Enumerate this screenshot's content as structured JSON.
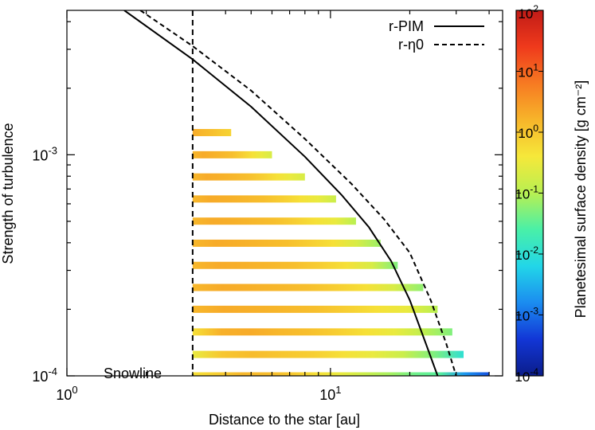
{
  "chart_data": {
    "type": "heatmap",
    "xlabel": "Distance to the star [au]",
    "ylabel": "Strength of turbulence",
    "xscale": "log",
    "yscale": "log",
    "xlim": [
      1,
      45
    ],
    "ylim": [
      0.0001,
      0.0045
    ],
    "x_ticks": [
      {
        "value": 1,
        "base": "10",
        "exp": "0"
      },
      {
        "value": 10,
        "base": "10",
        "exp": "1"
      }
    ],
    "y_ticks": [
      {
        "value": 0.0001,
        "base": "10",
        "exp": "-4"
      },
      {
        "value": 0.001,
        "base": "10",
        "exp": "-3"
      }
    ],
    "annotation": "Snowline",
    "snowline_x": 3.0,
    "series": [
      {
        "name": "r-PIM",
        "style": "solid",
        "points": [
          [
            1.65,
            0.0045
          ],
          [
            3.0,
            0.0027
          ],
          [
            5.0,
            0.00165
          ],
          [
            8.0,
            0.00098
          ],
          [
            11.0,
            0.00066
          ],
          [
            14.0,
            0.00047
          ],
          [
            17.0,
            0.00033
          ],
          [
            20.0,
            0.00022
          ],
          [
            23.0,
            0.00014
          ],
          [
            25.5,
            0.0001
          ]
        ]
      },
      {
        "name": "r-η0",
        "style": "dashed",
        "points": [
          [
            1.9,
            0.0045
          ],
          [
            3.0,
            0.0031
          ],
          [
            5.0,
            0.00195
          ],
          [
            8.0,
            0.00118
          ],
          [
            12.0,
            0.00074
          ],
          [
            16.0,
            0.00051
          ],
          [
            20.0,
            0.00036
          ],
          [
            24.0,
            0.00022
          ],
          [
            27.5,
            0.00014
          ],
          [
            30.0,
            0.0001
          ]
        ]
      }
    ],
    "strips": [
      {
        "alpha": 0.0001,
        "x_start": 3.0,
        "x_end": 40.0,
        "values": [
          0.5,
          0.8,
          1.5,
          1.3,
          1.0,
          0.5,
          0.3,
          0.15,
          0.08,
          0.04,
          0.03,
          0.002,
          0.0006
        ]
      },
      {
        "alpha": 0.000125,
        "x_start": 3.0,
        "x_end": 32.0,
        "values": [
          0.3,
          1.0,
          1.3,
          1.0,
          0.8,
          0.5,
          0.3,
          0.15,
          0.05,
          0.01
        ]
      },
      {
        "alpha": 0.000158,
        "x_start": 3.0,
        "x_end": 29.0,
        "values": [
          0.5,
          1.8,
          2.0,
          1.5,
          1.2,
          0.8,
          0.5,
          0.3,
          0.12,
          0.05
        ]
      },
      {
        "alpha": 0.0002,
        "x_start": 3.0,
        "x_end": 25.5,
        "values": [
          1.5,
          2.0,
          1.8,
          1.5,
          1.2,
          0.8,
          0.5,
          0.3,
          0.1
        ]
      },
      {
        "alpha": 0.000251,
        "x_start": 3.0,
        "x_end": 22.5,
        "values": [
          1.5,
          2.0,
          1.8,
          1.5,
          1.2,
          0.8,
          0.5,
          0.2,
          0.06
        ]
      },
      {
        "alpha": 0.000316,
        "x_start": 3.0,
        "x_end": 18.0,
        "values": [
          1.5,
          2.0,
          1.8,
          1.5,
          1.2,
          0.8,
          0.5,
          0.2,
          0.05
        ]
      },
      {
        "alpha": 0.000398,
        "x_start": 3.0,
        "x_end": 15.5,
        "values": [
          1.5,
          2.0,
          1.8,
          1.5,
          1.2,
          0.8,
          0.5,
          0.2,
          0.07
        ]
      },
      {
        "alpha": 0.000501,
        "x_start": 3.0,
        "x_end": 12.5,
        "values": [
          1.5,
          2.0,
          1.8,
          1.5,
          1.2,
          0.8,
          0.5,
          0.3,
          0.1
        ]
      },
      {
        "alpha": 0.000631,
        "x_start": 3.0,
        "x_end": 10.5,
        "values": [
          1.5,
          2.0,
          1.8,
          1.5,
          1.2,
          0.8,
          0.5,
          0.3,
          0.15
        ]
      },
      {
        "alpha": 0.000794,
        "x_start": 3.0,
        "x_end": 8.0,
        "values": [
          1.5,
          2.0,
          1.8,
          1.5,
          1.2,
          0.8,
          0.5,
          0.3,
          0.2
        ]
      },
      {
        "alpha": 0.001,
        "x_start": 3.0,
        "x_end": 6.0,
        "values": [
          1.5,
          2.0,
          1.8,
          1.5,
          1.2,
          0.8,
          0.5,
          0.3,
          0.2
        ]
      },
      {
        "alpha": 0.00126,
        "x_start": 3.0,
        "x_end": 4.2,
        "values": [
          2.0,
          1.5,
          1.2,
          0.9,
          0.7
        ]
      }
    ],
    "colorbar": {
      "label": "Planetesimal surface density [g cm⁻²]",
      "scale": "log",
      "range": [
        0.0001,
        100
      ],
      "colormap": [
        "#0b1d8a",
        "#1236d6",
        "#1b8cf0",
        "#22d6e8",
        "#49f0a8",
        "#b8f052",
        "#f6e83a",
        "#f7b52a",
        "#f77a22",
        "#ef3a1c",
        "#c21b17"
      ],
      "ticks": [
        {
          "value": 0.0001,
          "base": "10",
          "exp": "-4"
        },
        {
          "value": 0.001,
          "base": "10",
          "exp": "-3"
        },
        {
          "value": 0.01,
          "base": "10",
          "exp": "-2"
        },
        {
          "value": 0.1,
          "base": "10",
          "exp": "-1"
        },
        {
          "value": 1,
          "base": "10",
          "exp": "0"
        },
        {
          "value": 10,
          "base": "10",
          "exp": "1"
        },
        {
          "value": 100,
          "base": "10",
          "exp": "2"
        }
      ]
    },
    "legend_position": "top-right"
  }
}
